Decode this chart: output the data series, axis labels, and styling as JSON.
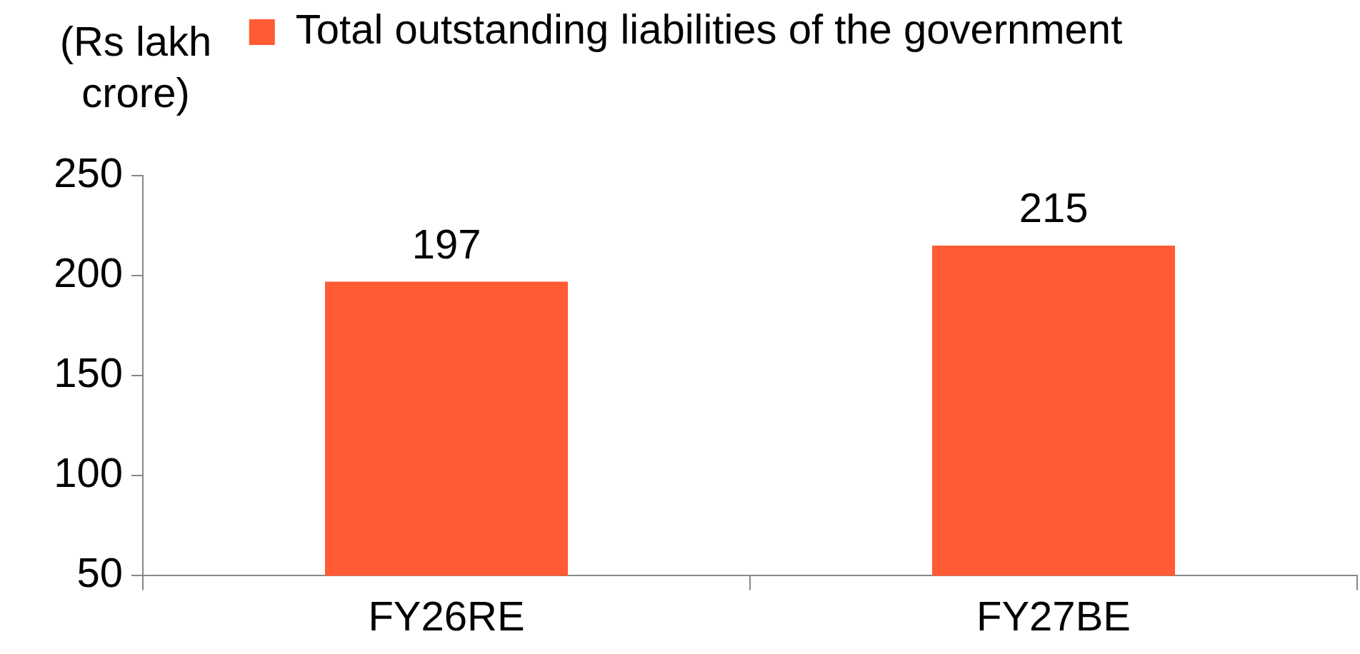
{
  "chart_data": {
    "type": "bar",
    "ylabel": "(Rs lakh crore)",
    "categories": [
      "FY26RE",
      "FY27BE"
    ],
    "series": [
      {
        "name": "Total outstanding liabilities of the government",
        "color": "#ff5b35",
        "values": [
          197,
          215
        ]
      }
    ],
    "ylim": [
      50,
      250
    ],
    "yticks": [
      50,
      100,
      150,
      200,
      250
    ],
    "data_labels": true,
    "legend": "top"
  }
}
